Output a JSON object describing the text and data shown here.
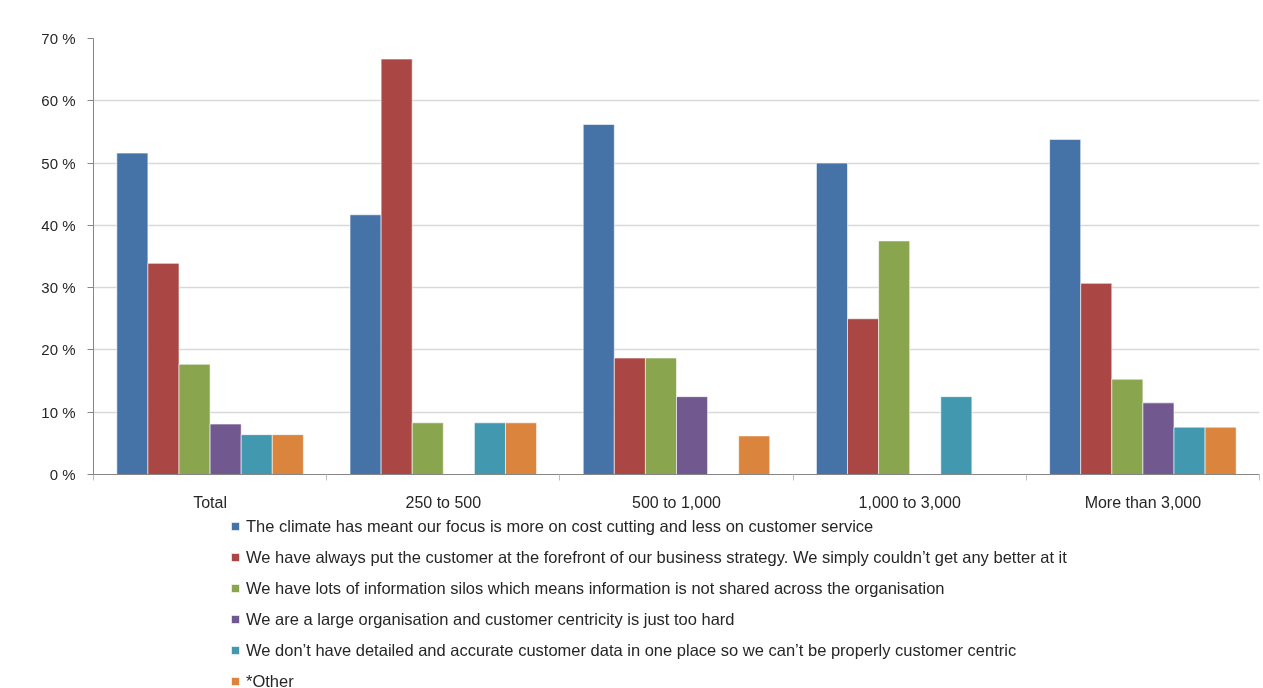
{
  "chart_data": {
    "type": "bar",
    "categories": [
      "Total",
      "250 to 500",
      "500 to 1,000",
      "1,000 to 3,000",
      "More than 3,000"
    ],
    "series": [
      {
        "name": "The climate has meant our focus is more on cost cutting and less on customer service",
        "color": "#4572a7",
        "values": [
          51.6,
          41.7,
          56.2,
          50.0,
          53.8
        ]
      },
      {
        "name": "We have always put the customer at the forefront of our business strategy. We simply couldn’t get any better at it",
        "color": "#aa4643",
        "values": [
          33.9,
          66.7,
          18.7,
          25.0,
          30.7
        ]
      },
      {
        "name": "We have lots of information silos which means information is not shared across the organisation",
        "color": "#89a54e",
        "values": [
          17.7,
          8.3,
          18.7,
          37.5,
          15.3
        ]
      },
      {
        "name": "We are a large organisation and customer centricity is just too hard",
        "color": "#71588f",
        "values": [
          8.1,
          null,
          12.5,
          null,
          11.5
        ]
      },
      {
        "name": "We don’t have detailed and accurate customer data in one place so we can’t be properly customer centric",
        "color": "#4198af",
        "values": [
          6.4,
          8.3,
          null,
          12.5,
          7.6
        ]
      },
      {
        "name": "*Other",
        "color": "#db843d",
        "values": [
          6.4,
          8.3,
          6.2,
          null,
          7.6
        ]
      }
    ],
    "ylim": [
      0,
      70
    ],
    "yticks": [
      {
        "value": 0,
        "label": "0 %"
      },
      {
        "value": 10,
        "label": "10 %"
      },
      {
        "value": 20,
        "label": "20 %"
      },
      {
        "value": 30,
        "label": "30 %"
      },
      {
        "value": 40,
        "label": "40 %"
      },
      {
        "value": 50,
        "label": "50 %"
      },
      {
        "value": 60,
        "label": "60 %"
      },
      {
        "value": 70,
        "label": "70 %"
      }
    ],
    "grid": "y",
    "legend": "bottom"
  }
}
